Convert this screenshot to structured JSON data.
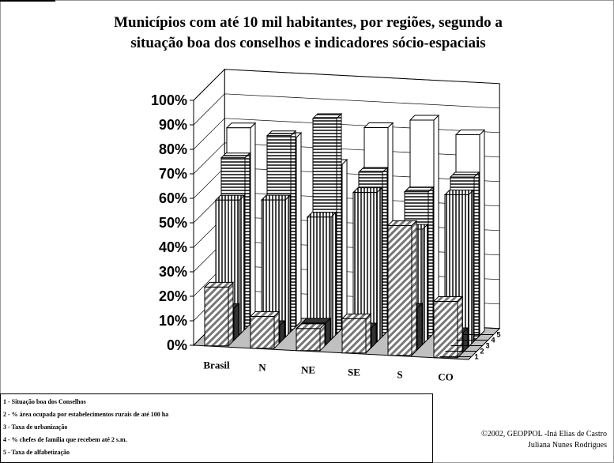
{
  "chart_data": {
    "type": "bar3d",
    "title": [
      "Municípios com até 10 mil habitantes, por regiões,  segundo a",
      "situação boa dos conselhos e indicadores sócio-espaciais"
    ],
    "categories": [
      "Brasil",
      "N",
      "NE",
      "SE",
      "S",
      "CO"
    ],
    "depth_labels": [
      "1",
      "2",
      "3",
      "4",
      "5"
    ],
    "series": [
      {
        "name": "1 - Situação boa dos Conselhos",
        "color": "#ffffff",
        "pattern": "diagonal",
        "values": [
          24,
          13,
          9,
          14,
          53,
          23
        ]
      },
      {
        "name": "2 - % área ocupada por estabelecimentos rurais de até 100 ha",
        "color": "#333333",
        "pattern": "solid",
        "values": [
          13,
          7,
          9,
          8,
          17,
          8
        ]
      },
      {
        "name": "3 - Taxa de urbanização",
        "color": "#ffffff",
        "pattern": "vertical",
        "values": [
          55,
          56,
          50,
          61,
          47,
          62
        ]
      },
      {
        "name": "4 - % chefes de família que recebem até 2 s.m.",
        "color": "#ffffff",
        "pattern": "horizontal",
        "values": [
          70,
          80,
          88,
          67,
          60,
          67
        ]
      },
      {
        "name": "5 - Taxa de alfabetização",
        "color": "#ffffff",
        "pattern": "none",
        "values": [
          80,
          77,
          67,
          83,
          87,
          82
        ]
      }
    ],
    "ylim": [
      0,
      100
    ],
    "yticks": [
      {
        "value": 0,
        "label": "0%"
      },
      {
        "value": 10,
        "label": "10%"
      },
      {
        "value": 20,
        "label": "20%"
      },
      {
        "value": 30,
        "label": "30%"
      },
      {
        "value": 40,
        "label": "40%"
      },
      {
        "value": 50,
        "label": "50%"
      },
      {
        "value": 60,
        "label": "60%"
      },
      {
        "value": 70,
        "label": "70%"
      },
      {
        "value": 80,
        "label": "80%"
      },
      {
        "value": 90,
        "label": "90%"
      },
      {
        "value": 100,
        "label": "100%"
      }
    ],
    "grid": true,
    "credits": [
      "©2002, GEOPPOL -Iná Elias de Castro",
      "Juliana Nunes Rodrigues"
    ]
  }
}
